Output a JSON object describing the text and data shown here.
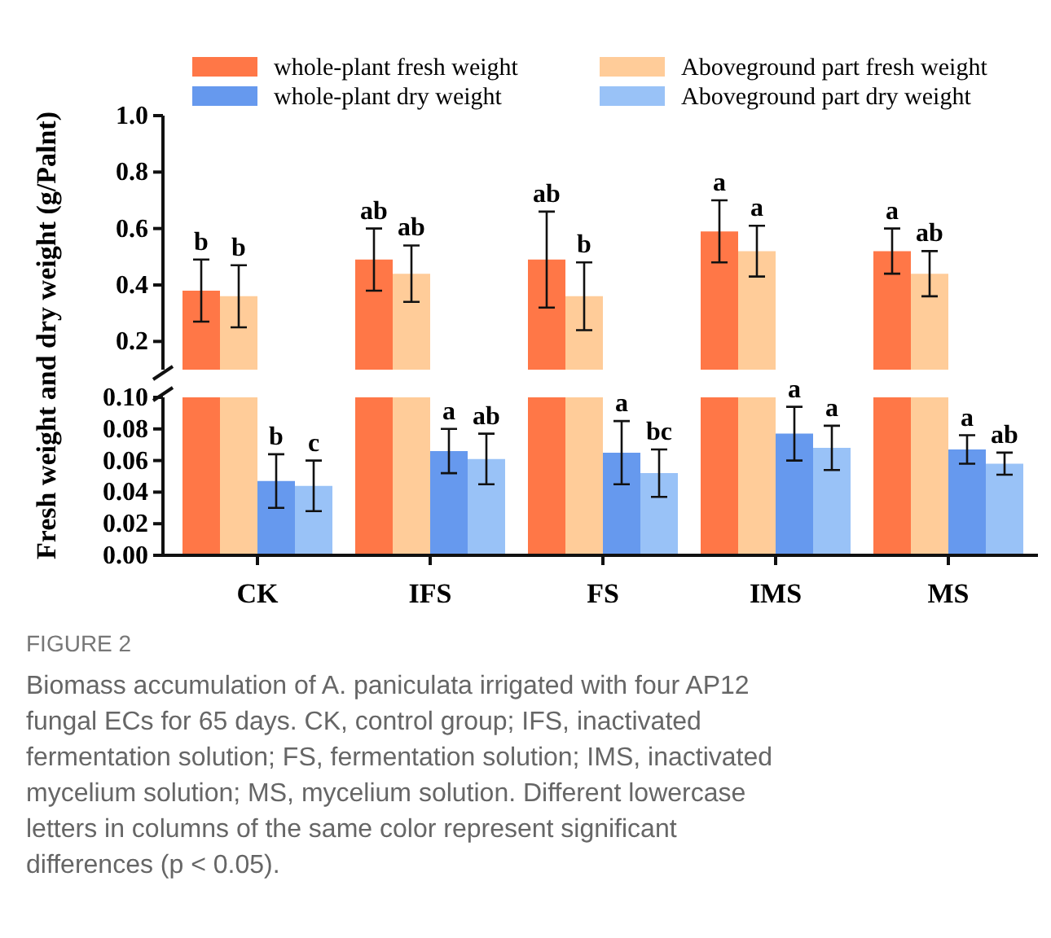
{
  "chart_data": [
    {
      "type": "bar",
      "categories": [
        null,
        null,
        null,
        null,
        null
      ],
      "ylabel": "Fresh weight and dry weight (g/Palnt)",
      "ylim": [
        0.1,
        1.0
      ],
      "yticks": [
        {
          "value": 0.2,
          "label": "0.2"
        },
        {
          "value": 0.4,
          "label": "0.4"
        },
        {
          "value": 0.6,
          "label": "0.6"
        },
        {
          "value": 0.8,
          "label": "0.8"
        },
        {
          "value": 1.0,
          "label": "1.0"
        }
      ],
      "legend": "top",
      "tick_labels": "y",
      "series": [
        {
          "name": "whole-plant fresh weight",
          "color": "#ff7747",
          "values": [
            0.38,
            0.49,
            0.49,
            0.59,
            0.52
          ],
          "errors": [
            0.11,
            0.11,
            0.17,
            0.11,
            0.08
          ]
        },
        {
          "name": "Aboveground part fresh weight",
          "color": "#ffcc99",
          "values": [
            0.36,
            0.44,
            0.36,
            0.52,
            0.44
          ],
          "errors": [
            0.11,
            0.1,
            0.12,
            0.09,
            0.08
          ]
        }
      ],
      "annotations": [
        "b",
        "b",
        "ab",
        "ab",
        "ab",
        "b",
        "a",
        "a",
        "a",
        "ab"
      ]
    },
    {
      "type": "bar",
      "categories": [
        "CK",
        "IFS",
        "FS",
        "IMS",
        "MS"
      ],
      "ylim": [
        0,
        0.1
      ],
      "yticks": [
        {
          "value": 0,
          "label": "0.00"
        },
        {
          "value": 0.02,
          "label": "0.02"
        },
        {
          "value": 0.04,
          "label": "0.04"
        },
        {
          "value": 0.06,
          "label": "0.06"
        },
        {
          "value": 0.08,
          "label": "0.08"
        },
        {
          "value": 0.1,
          "label": "0.10"
        }
      ],
      "legend": "top",
      "series": [
        {
          "name": "whole-plant dry weight",
          "color": "#6699ee",
          "values": [
            0.047,
            0.066,
            0.065,
            0.077,
            0.067
          ],
          "errors": [
            0.017,
            0.014,
            0.02,
            0.017,
            0.009
          ]
        },
        {
          "name": "Aboveground part dry weight",
          "color": "#99c2f7",
          "values": [
            0.044,
            0.061,
            0.052,
            0.068,
            0.058
          ],
          "errors": [
            0.016,
            0.016,
            0.015,
            0.014,
            0.007
          ]
        }
      ],
      "annotations": [
        "b",
        "c",
        "a",
        "ab",
        "a",
        "bc",
        "a",
        "a",
        "a",
        "ab",
        "FIGURE 2",
        "Biomass accumulation of A. paniculata irrigated with four AP12 fungal ECs for 65 days. CK, control group; IFS, inactivated fermentation solution; FS, fermentation solution; IMS, inactivated mycelium solution; MS, mycelium solution. Different lowercase letters in columns of the same color represent significant differences (p < 0.05)."
      ]
    }
  ]
}
